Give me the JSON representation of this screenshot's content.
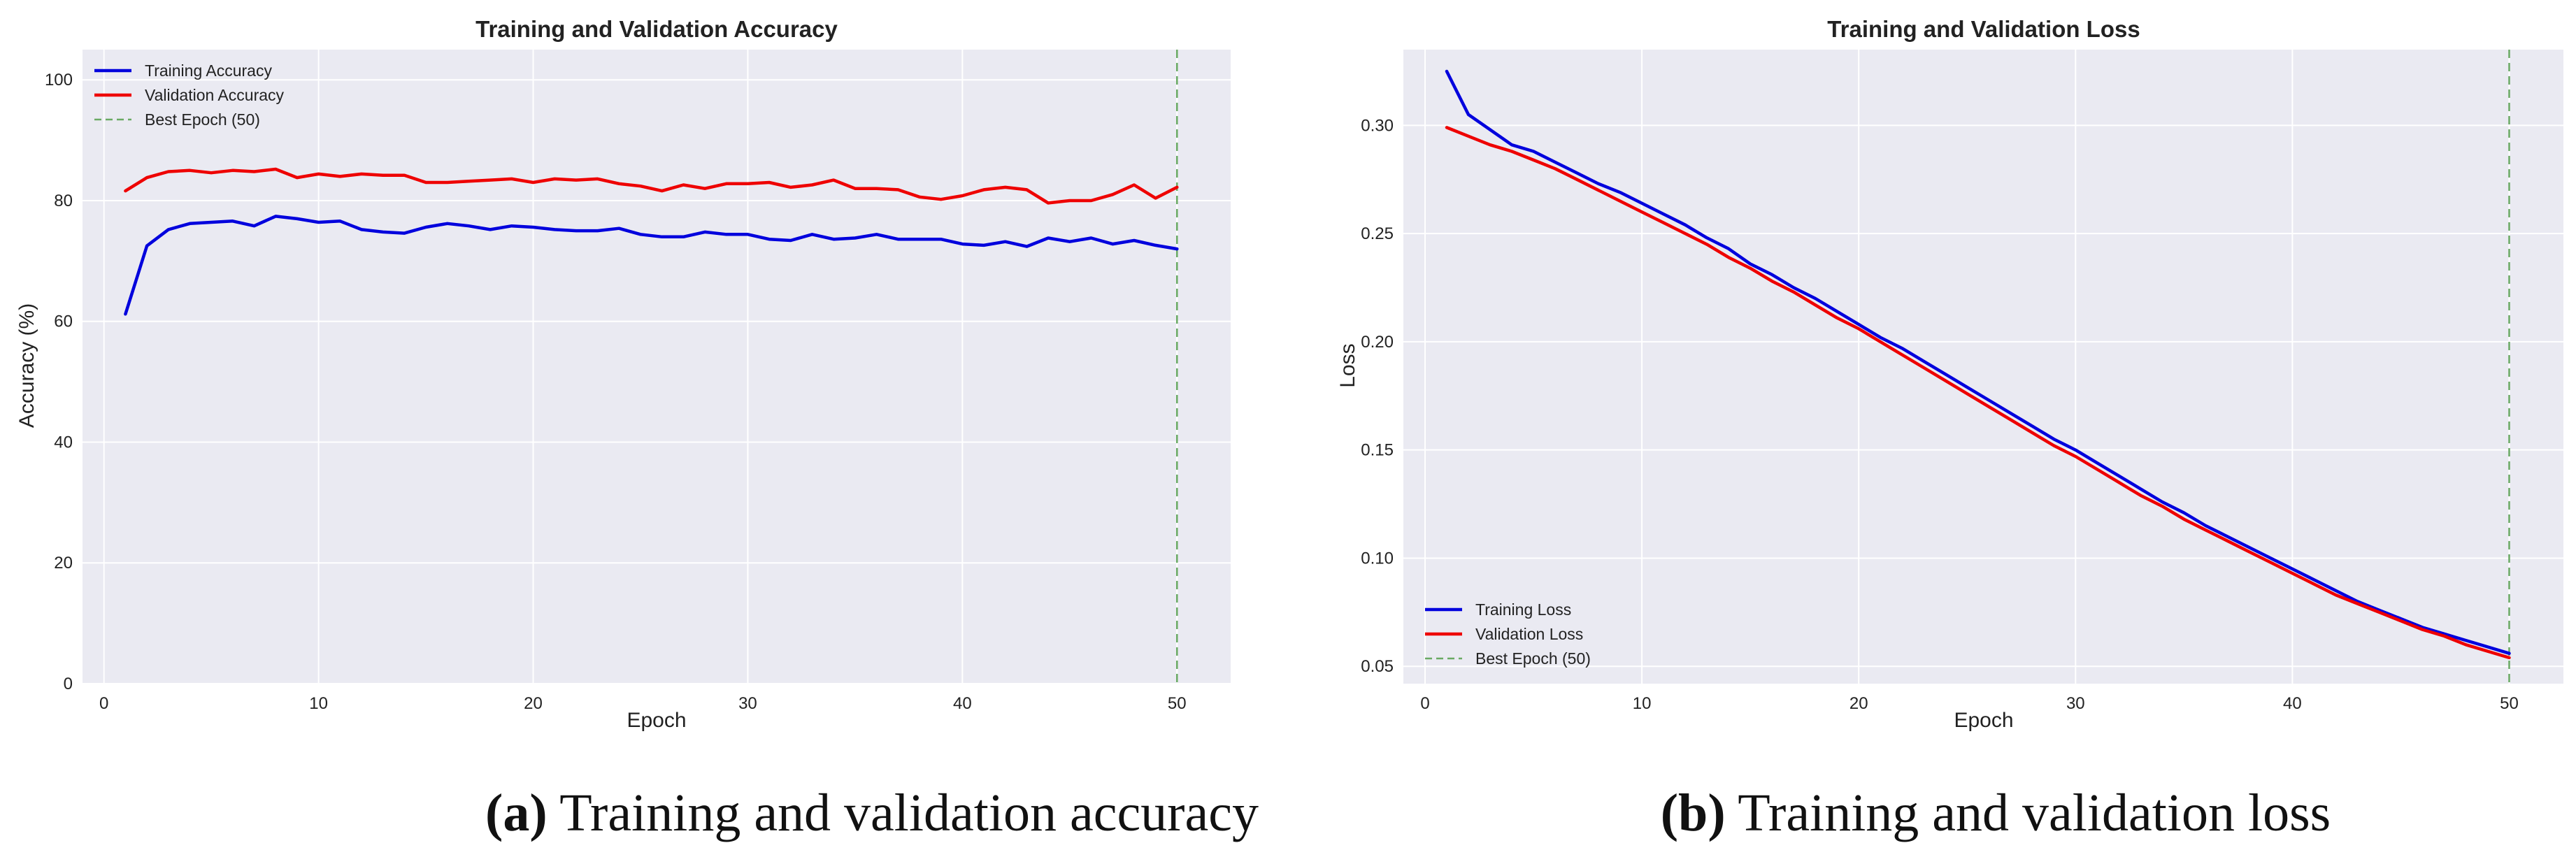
{
  "figure": {
    "captions": [
      {
        "label": "(a)",
        "text": "Training and validation accuracy"
      },
      {
        "label": "(b)",
        "text": "Training and validation loss"
      }
    ]
  },
  "colors": {
    "panel_bg": "#eaeaf2",
    "grid": "#ffffff",
    "training": "#0000dd",
    "validation": "#ee0000",
    "best_epoch": "#6aaa64"
  },
  "chart_data": [
    {
      "type": "line",
      "title": "Training and Validation Accuracy",
      "xlabel": "Epoch",
      "ylabel": "Accuracy (%)",
      "xlim": [
        -1,
        52.5
      ],
      "ylim": [
        0,
        105
      ],
      "xticks": [
        0,
        10,
        20,
        30,
        40,
        50
      ],
      "yticks": [
        0,
        20,
        40,
        60,
        80,
        100
      ],
      "grid": true,
      "legend_position": "top-left",
      "best_epoch": {
        "x": 50,
        "label": "Best Epoch (50)"
      },
      "x": [
        1,
        2,
        3,
        4,
        5,
        6,
        7,
        8,
        9,
        10,
        11,
        12,
        13,
        14,
        15,
        16,
        17,
        18,
        19,
        20,
        21,
        22,
        23,
        24,
        25,
        26,
        27,
        28,
        29,
        30,
        31,
        32,
        33,
        34,
        35,
        36,
        37,
        38,
        39,
        40,
        41,
        42,
        43,
        44,
        45,
        46,
        47,
        48,
        49,
        50
      ],
      "series": [
        {
          "name": "Training Accuracy",
          "color": "#0000dd",
          "values": [
            61.2,
            72.5,
            75.2,
            76.2,
            76.4,
            76.6,
            75.8,
            77.4,
            77.0,
            76.4,
            76.6,
            75.2,
            74.8,
            74.6,
            75.6,
            76.2,
            75.8,
            75.2,
            75.8,
            75.6,
            75.2,
            75.0,
            75.0,
            75.4,
            74.4,
            74.0,
            74.0,
            74.8,
            74.4,
            74.4,
            73.6,
            73.4,
            74.4,
            73.6,
            73.8,
            74.4,
            73.6,
            73.6,
            73.6,
            72.8,
            72.6,
            73.2,
            72.4,
            73.8,
            73.2,
            73.8,
            72.8,
            73.4,
            72.6,
            72.0
          ]
        },
        {
          "name": "Validation Accuracy",
          "color": "#ee0000",
          "values": [
            81.6,
            83.8,
            84.8,
            85.0,
            84.6,
            85.0,
            84.8,
            85.2,
            83.8,
            84.4,
            84.0,
            84.4,
            84.2,
            84.2,
            83.0,
            83.0,
            83.2,
            83.4,
            83.6,
            83.0,
            83.6,
            83.4,
            83.6,
            82.8,
            82.4,
            81.6,
            82.6,
            82.0,
            82.8,
            82.8,
            83.0,
            82.2,
            82.6,
            83.4,
            82.0,
            82.0,
            81.8,
            80.6,
            80.2,
            80.8,
            81.8,
            82.2,
            81.8,
            79.6,
            80.0,
            80.0,
            81.0,
            82.6,
            80.4,
            82.2
          ]
        }
      ]
    },
    {
      "type": "line",
      "title": "Training and Validation Loss",
      "xlabel": "Epoch",
      "ylabel": "Loss",
      "xlim": [
        -1,
        52.5
      ],
      "ylim": [
        0.042,
        0.335
      ],
      "xticks": [
        0,
        10,
        20,
        30,
        40,
        50
      ],
      "yticks": [
        0.05,
        0.1,
        0.15,
        0.2,
        0.25,
        0.3
      ],
      "ytick_labels": [
        "0.05",
        "0.10",
        "0.15",
        "0.20",
        "0.25",
        "0.30"
      ],
      "grid": true,
      "legend_position": "lower-left",
      "best_epoch": {
        "x": 50,
        "label": "Best Epoch (50)"
      },
      "x": [
        1,
        2,
        3,
        4,
        5,
        6,
        7,
        8,
        9,
        10,
        11,
        12,
        13,
        14,
        15,
        16,
        17,
        18,
        19,
        20,
        21,
        22,
        23,
        24,
        25,
        26,
        27,
        28,
        29,
        30,
        31,
        32,
        33,
        34,
        35,
        36,
        37,
        38,
        39,
        40,
        41,
        42,
        43,
        44,
        45,
        46,
        47,
        48,
        49,
        50
      ],
      "series": [
        {
          "name": "Training Loss",
          "color": "#0000dd",
          "values": [
            0.325,
            0.305,
            0.298,
            0.291,
            0.288,
            0.283,
            0.278,
            0.273,
            0.269,
            0.264,
            0.259,
            0.254,
            0.248,
            0.243,
            0.236,
            0.231,
            0.225,
            0.22,
            0.214,
            0.208,
            0.202,
            0.197,
            0.191,
            0.185,
            0.179,
            0.173,
            0.167,
            0.161,
            0.155,
            0.15,
            0.144,
            0.138,
            0.132,
            0.126,
            0.121,
            0.115,
            0.11,
            0.105,
            0.1,
            0.095,
            0.09,
            0.085,
            0.08,
            0.076,
            0.072,
            0.068,
            0.065,
            0.062,
            0.059,
            0.056
          ]
        },
        {
          "name": "Validation Loss",
          "color": "#ee0000",
          "values": [
            0.299,
            0.295,
            0.291,
            0.288,
            0.284,
            0.28,
            0.275,
            0.27,
            0.265,
            0.26,
            0.255,
            0.25,
            0.245,
            0.239,
            0.234,
            0.228,
            0.223,
            0.217,
            0.211,
            0.206,
            0.2,
            0.194,
            0.188,
            0.182,
            0.176,
            0.17,
            0.164,
            0.158,
            0.152,
            0.147,
            0.141,
            0.135,
            0.129,
            0.124,
            0.118,
            0.113,
            0.108,
            0.103,
            0.098,
            0.093,
            0.088,
            0.083,
            0.079,
            0.075,
            0.071,
            0.067,
            0.064,
            0.06,
            0.057,
            0.054
          ]
        }
      ]
    }
  ]
}
